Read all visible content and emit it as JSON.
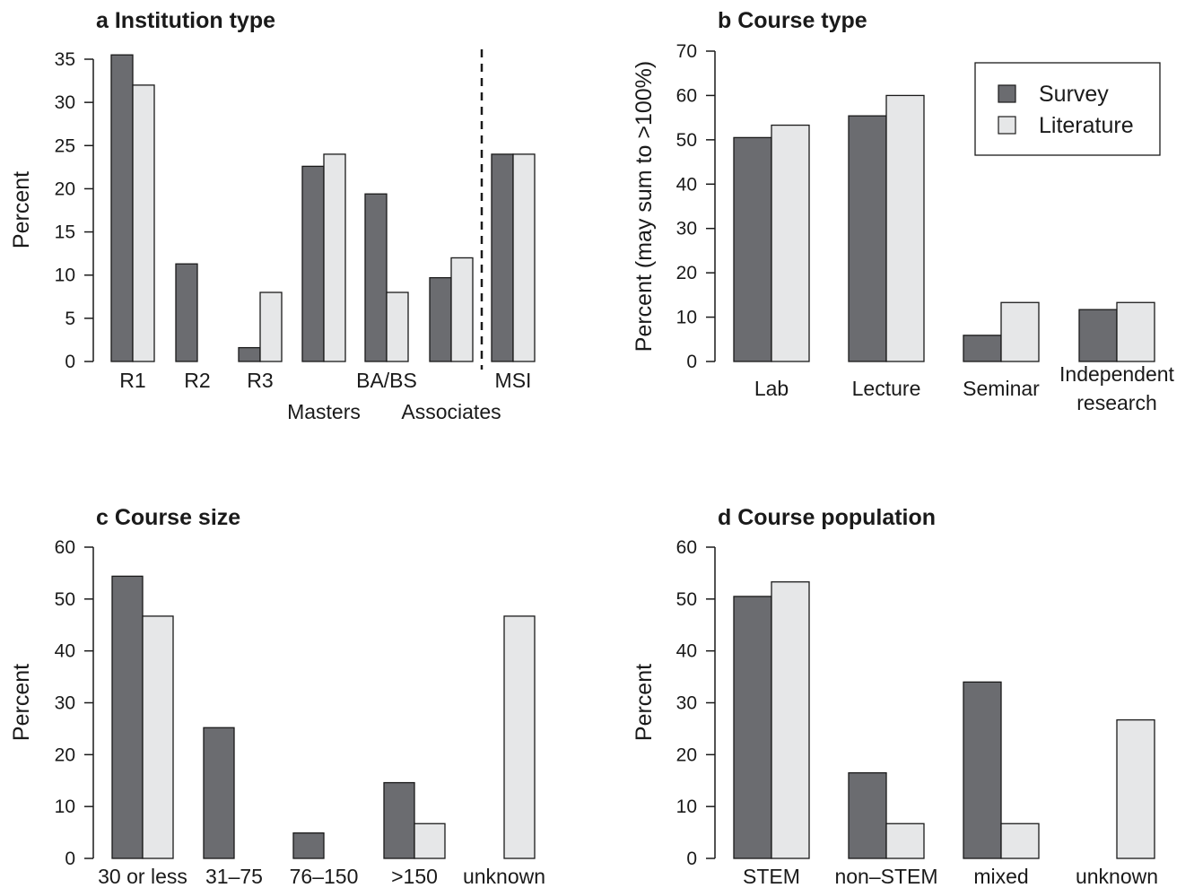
{
  "colors": {
    "survey": "#6b6c70",
    "literature": "#e6e7e8",
    "stroke": "#1a1a1a"
  },
  "legend": {
    "survey": "Survey",
    "literature": "Literature",
    "placement": "top-right of panel b"
  },
  "chart_data": [
    {
      "type": "bar",
      "title": "a Institution type",
      "ylabel": "Percent",
      "ylim": [
        0,
        35
      ],
      "yticks": [
        0,
        5,
        10,
        15,
        20,
        25,
        30,
        35
      ],
      "categories": [
        "R1",
        "R2",
        "R3",
        "Masters",
        "BA/BS",
        "Associates",
        "MSI"
      ],
      "series": [
        {
          "name": "Survey",
          "values": [
            35.5,
            11.3,
            1.6,
            22.6,
            19.4,
            9.7,
            24.0
          ]
        },
        {
          "name": "Literature",
          "values": [
            32.0,
            0,
            8.0,
            24.0,
            8.0,
            12.0,
            24.0
          ]
        }
      ],
      "divider_before": "MSI"
    },
    {
      "type": "bar",
      "title": "b Course type",
      "ylabel": "Percent   (may sum to >100%)",
      "ylim": [
        0,
        70
      ],
      "yticks": [
        0,
        10,
        20,
        30,
        40,
        50,
        60,
        70
      ],
      "categories": [
        "Lab",
        "Lecture",
        "Seminar",
        "Independent research"
      ],
      "series": [
        {
          "name": "Survey",
          "values": [
            50.5,
            55.4,
            5.9,
            11.7
          ]
        },
        {
          "name": "Literature",
          "values": [
            53.3,
            60.0,
            13.3,
            13.3
          ]
        }
      ]
    },
    {
      "type": "bar",
      "title": "c Course size",
      "ylabel": "Percent",
      "ylim": [
        0,
        60
      ],
      "yticks": [
        0,
        10,
        20,
        30,
        40,
        50,
        60
      ],
      "categories": [
        "30 or less",
        "31–75",
        "76–150",
        ">150",
        "unknown"
      ],
      "series": [
        {
          "name": "Survey",
          "values": [
            54.4,
            25.2,
            4.9,
            14.6,
            0
          ]
        },
        {
          "name": "Literature",
          "values": [
            46.7,
            0,
            0,
            6.7,
            46.7
          ]
        }
      ]
    },
    {
      "type": "bar",
      "title": "d Course population",
      "ylabel": "Percent",
      "ylim": [
        0,
        60
      ],
      "yticks": [
        0,
        10,
        20,
        30,
        40,
        50,
        60
      ],
      "categories": [
        "STEM",
        "non–STEM",
        "mixed",
        "unknown"
      ],
      "series": [
        {
          "name": "Survey",
          "values": [
            50.5,
            16.5,
            34.0,
            0
          ]
        },
        {
          "name": "Literature",
          "values": [
            53.3,
            6.7,
            6.7,
            26.7
          ]
        }
      ]
    }
  ]
}
